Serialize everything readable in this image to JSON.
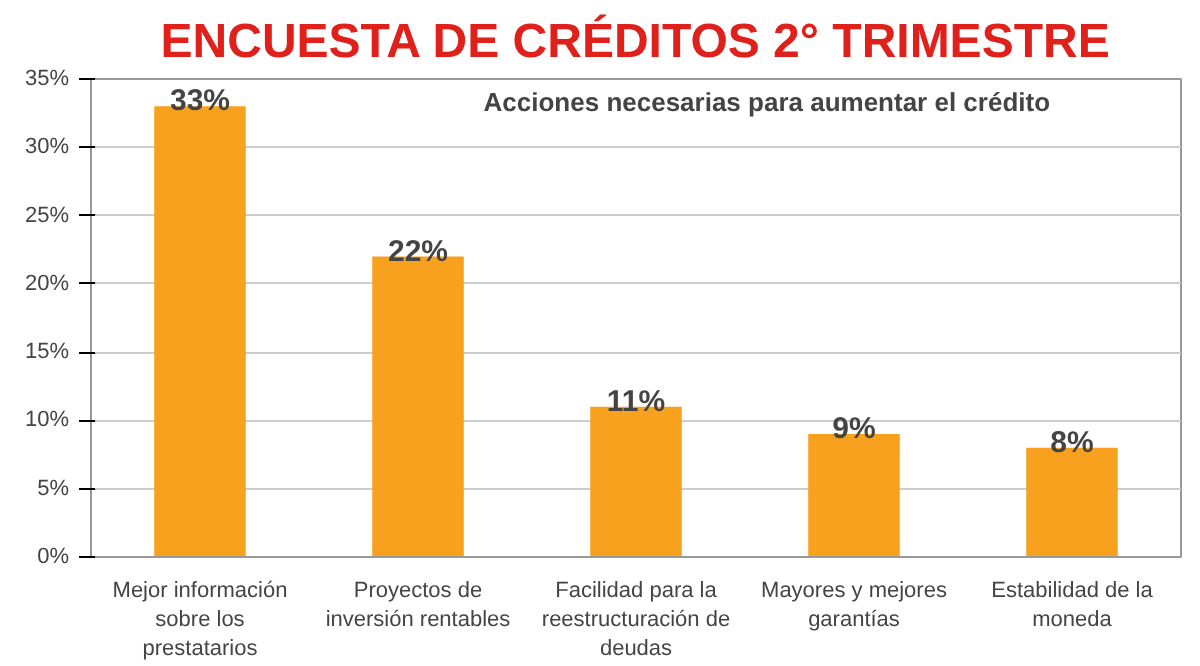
{
  "chart_data": {
    "type": "bar",
    "title": "ENCUESTA DE CRÉDITOS 2° TRIMESTRE",
    "subtitle": "Acciones necesarias para aumentar el crédito",
    "categories": [
      "Mejor información\nsobre los\nprestatarios",
      "Proyectos de\ninversión rentables",
      "Facilidad para la\nreestructuración de\ndeudas",
      "Mayores y mejores\ngarantías",
      "Estabilidad de la\nmoneda"
    ],
    "values": [
      33,
      22,
      11,
      9,
      8
    ],
    "color": "#f7a11e",
    "value_labels": [
      "33%",
      "22%",
      "11%",
      "9%",
      "8%"
    ],
    "ylim": [
      0,
      35
    ],
    "yticks": [
      {
        "value": 0,
        "label": "0%"
      },
      {
        "value": 5,
        "label": "5%"
      },
      {
        "value": 10,
        "label": "10%"
      },
      {
        "value": 15,
        "label": "15%"
      },
      {
        "value": 20,
        "label": "20%"
      },
      {
        "value": 25,
        "label": "25%"
      },
      {
        "value": 30,
        "label": "30%"
      },
      {
        "value": 35,
        "label": "35%"
      }
    ],
    "grid": "y"
  }
}
